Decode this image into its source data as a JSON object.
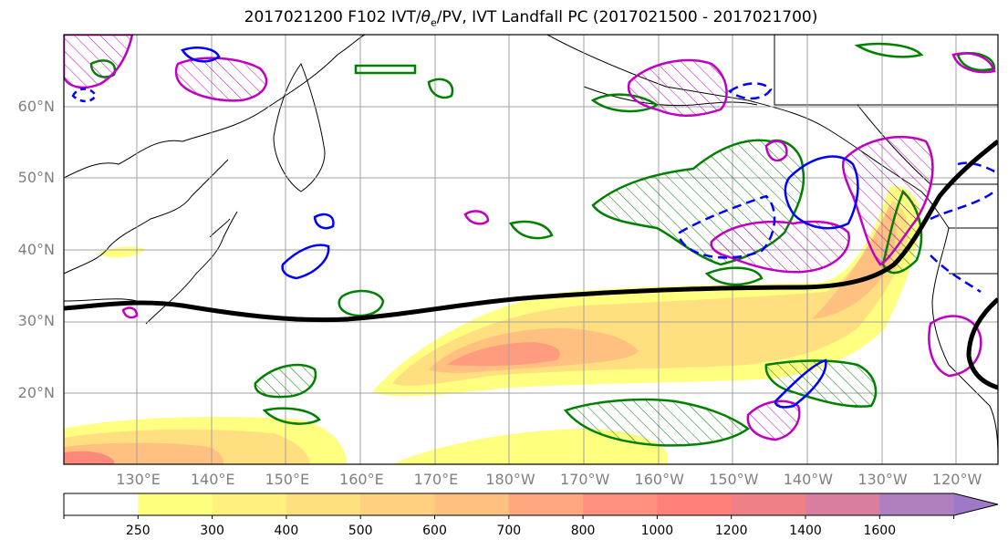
{
  "title_prefix": "2017021200 F102 IVT/",
  "title_theta": "θ",
  "title_sub": "e",
  "title_suffix": "/PV, IVT Landfall PC (2017021500 - 2017021700)",
  "lat_labels": [
    {
      "lat": 60,
      "text": "60°N"
    },
    {
      "lat": 50,
      "text": "50°N"
    },
    {
      "lat": 40,
      "text": "40°N"
    },
    {
      "lat": 30,
      "text": "30°N"
    },
    {
      "lat": 20,
      "text": "20°N"
    }
  ],
  "lon_labels": [
    {
      "lon": 130,
      "text": "130°E"
    },
    {
      "lon": 140,
      "text": "140°E"
    },
    {
      "lon": 150,
      "text": "150°E"
    },
    {
      "lon": 160,
      "text": "160°E"
    },
    {
      "lon": 170,
      "text": "170°E"
    },
    {
      "lon": 180,
      "text": "180°W"
    },
    {
      "lon": 190,
      "text": "170°W"
    },
    {
      "lon": 200,
      "text": "160°W"
    },
    {
      "lon": 210,
      "text": "150°W"
    },
    {
      "lon": 220,
      "text": "140°W"
    },
    {
      "lon": 230,
      "text": "130°W"
    },
    {
      "lon": 240,
      "text": "120°W"
    }
  ],
  "colorbar": {
    "levels": [
      "250",
      "300",
      "400",
      "500",
      "600",
      "700",
      "800",
      "1000",
      "1200",
      "1400",
      "1600"
    ],
    "colors": [
      "#ffff80",
      "#fff080",
      "#ffe080",
      "#ffd080",
      "#ffc080",
      "#ffa880",
      "#ff9080",
      "#ff8078",
      "#f08088",
      "#d87fa0",
      "#b07fc0",
      "#a078c8"
    ]
  },
  "colors": {
    "ivt_contour": "#000000",
    "theta_e_positive": "#0000ff",
    "pv_anomaly": "#c000c0",
    "vorticity_green": "#008000",
    "grid": "#a0a0a0"
  }
}
